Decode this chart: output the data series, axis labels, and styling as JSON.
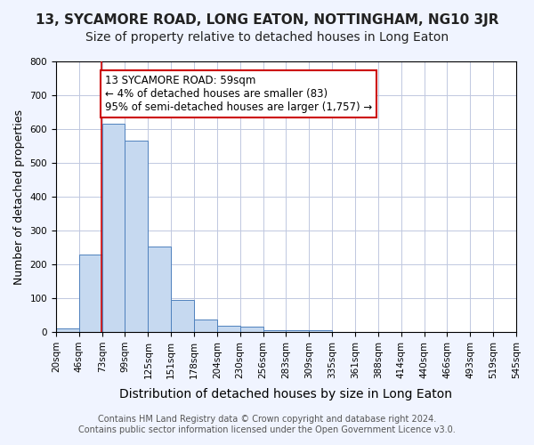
{
  "title": "13, SYCAMORE ROAD, LONG EATON, NOTTINGHAM, NG10 3JR",
  "subtitle": "Size of property relative to detached houses in Long Eaton",
  "xlabel": "Distribution of detached houses by size in Long Eaton",
  "ylabel": "Number of detached properties",
  "footer_line1": "Contains HM Land Registry data © Crown copyright and database right 2024.",
  "footer_line2": "Contains public sector information licensed under the Open Government Licence v3.0.",
  "bin_labels": [
    "20sqm",
    "46sqm",
    "73sqm",
    "99sqm",
    "125sqm",
    "151sqm",
    "178sqm",
    "204sqm",
    "230sqm",
    "256sqm",
    "283sqm",
    "309sqm",
    "335sqm",
    "361sqm",
    "388sqm",
    "414sqm",
    "440sqm",
    "466sqm",
    "493sqm",
    "519sqm",
    "545sqm"
  ],
  "bar_values": [
    10,
    228,
    616,
    566,
    252,
    95,
    37,
    19,
    16,
    5,
    5,
    5,
    0,
    0,
    0,
    0,
    0,
    0,
    0,
    0
  ],
  "bar_color": "#c6d9f0",
  "bar_edge_color": "#4f81bd",
  "property_line_x": 59,
  "annotation_text": "13 SYCAMORE ROAD: 59sqm\n← 4% of detached houses are smaller (83)\n95% of semi-detached houses are larger (1,757) →",
  "annotation_box_color": "#ffffff",
  "annotation_box_edge_color": "#cc0000",
  "property_line_color": "#cc0000",
  "ylim": [
    0,
    800
  ],
  "yticks": [
    0,
    100,
    200,
    300,
    400,
    500,
    600,
    700,
    800
  ],
  "background_color": "#f0f4ff",
  "plot_background_color": "#ffffff",
  "grid_color": "#c0c8e0",
  "title_fontsize": 11,
  "subtitle_fontsize": 10,
  "xlabel_fontsize": 10,
  "ylabel_fontsize": 9,
  "tick_fontsize": 7.5,
  "annotation_fontsize": 8.5,
  "footer_fontsize": 7
}
